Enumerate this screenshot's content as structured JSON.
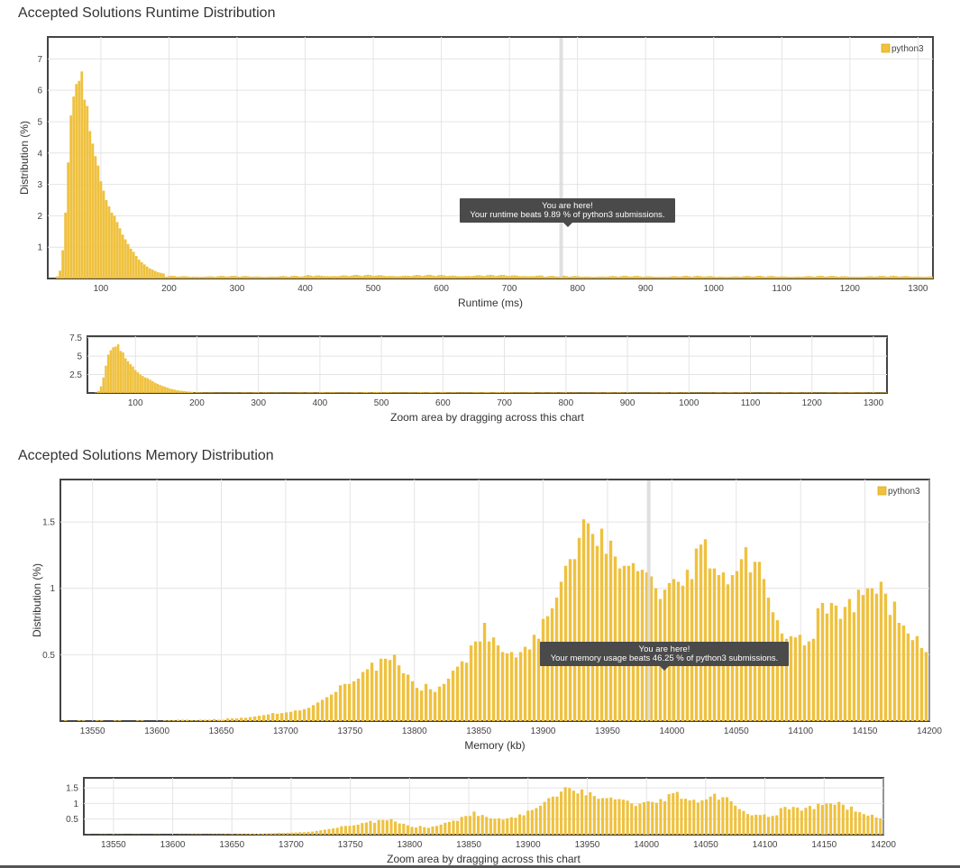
{
  "runtime_section": {
    "title": "Accepted Solutions Runtime Distribution"
  },
  "memory_section": {
    "title": "Accepted Solutions Memory Distribution"
  },
  "colors": {
    "bar": "#efc13e",
    "bar_edge": "#e0aa1a",
    "tooltip_bg": "#4a4a4a",
    "marker": "#d8d8d8"
  },
  "chart_data": [
    {
      "id": "runtime_main",
      "type": "bar",
      "ylabel": "Distribution (%)",
      "xlabel": "Runtime (ms)",
      "legend": "python3",
      "legend_position": "top-right",
      "xlim": [
        22,
        1322
      ],
      "ylim": [
        0,
        7.7
      ],
      "xticks": [
        100,
        200,
        300,
        400,
        500,
        600,
        700,
        800,
        900,
        1000,
        1100,
        1200,
        1300
      ],
      "yticks": [
        1,
        2,
        3,
        4,
        5,
        6,
        7
      ],
      "grid": true,
      "marker_x": 776,
      "tooltip": {
        "line1": "You are here!",
        "line2": "Your runtime beats 9.89 % of python3 submissions."
      },
      "bins": {
        "start": 36,
        "step": 4,
        "peak": [
          0.07,
          0.25,
          0.9,
          2.1,
          3.7,
          5.2,
          5.8,
          6.2,
          6.3,
          6.6,
          5.7,
          5.5,
          4.7,
          4.3,
          3.9,
          3.6,
          3.1,
          2.8,
          2.5,
          2.3,
          2.1,
          2.0,
          1.8,
          1.6,
          1.4,
          1.25,
          1.1,
          0.95,
          0.85,
          0.72,
          0.6,
          0.52,
          0.45,
          0.38,
          0.32,
          0.28,
          0.24,
          0.2,
          0.18,
          0.16
        ],
        "tail": 0.09,
        "end": 1320
      }
    },
    {
      "id": "runtime_zoom",
      "type": "bar",
      "xlabel": "Zoom area by dragging across this chart",
      "xlim": [
        22,
        1322
      ],
      "ylim": [
        0,
        7.7
      ],
      "xticks": [
        100,
        200,
        300,
        400,
        500,
        600,
        700,
        800,
        900,
        1000,
        1100,
        1200,
        1300
      ],
      "yticks": [
        2.5,
        5.0,
        7.5
      ],
      "grid": true
    },
    {
      "id": "memory_main",
      "type": "bar",
      "ylabel": "Distribution (%)",
      "xlabel": "Memory (kb)",
      "legend": "python3",
      "legend_position": "top-right",
      "xlim": [
        13525,
        14200
      ],
      "ylim": [
        0,
        1.82
      ],
      "xticks": [
        13550,
        13600,
        13650,
        13700,
        13750,
        13800,
        13850,
        13900,
        13950,
        14000,
        14050,
        14100,
        14150,
        14200
      ],
      "yticks": [
        0.5,
        1.0,
        1.5
      ],
      "grid": true,
      "marker_x": 13982,
      "tooltip": {
        "line1": "You are here!",
        "line2": "Your memory usage beats 46.25 % of python3 submissions."
      },
      "bins": {
        "start": 13529,
        "step": 3.5,
        "values": [
          0.005,
          0.0,
          0.0,
          0.005,
          0.005,
          0.0,
          0.0,
          0.005,
          0.005,
          0.0,
          0.0,
          0.005,
          0.005,
          0.0,
          0.0,
          0.0,
          0.005,
          0.005,
          0.0,
          0.0,
          0.0,
          0.0,
          0.005,
          0.005,
          0.005,
          0.01,
          0.01,
          0.01,
          0.005,
          0.005,
          0.01,
          0.01,
          0.01,
          0.015,
          0.01,
          0.01,
          0.02,
          0.02,
          0.02,
          0.025,
          0.025,
          0.03,
          0.035,
          0.04,
          0.045,
          0.05,
          0.06,
          0.055,
          0.06,
          0.065,
          0.07,
          0.08,
          0.08,
          0.09,
          0.1,
          0.12,
          0.14,
          0.16,
          0.18,
          0.2,
          0.22,
          0.27,
          0.28,
          0.28,
          0.3,
          0.32,
          0.37,
          0.39,
          0.44,
          0.38,
          0.47,
          0.47,
          0.46,
          0.5,
          0.42,
          0.36,
          0.35,
          0.3,
          0.25,
          0.23,
          0.28,
          0.24,
          0.22,
          0.26,
          0.28,
          0.32,
          0.38,
          0.41,
          0.45,
          0.44,
          0.57,
          0.6,
          0.6,
          0.74,
          0.6,
          0.63,
          0.57,
          0.52,
          0.51,
          0.52,
          0.48,
          0.52,
          0.56,
          0.54,
          0.65,
          0.62,
          0.77,
          0.79,
          0.85,
          0.93,
          1.05,
          1.17,
          1.22,
          1.22,
          1.38,
          1.52,
          1.49,
          1.41,
          1.32,
          1.45,
          1.26,
          1.36,
          1.24,
          1.15,
          1.17,
          1.17,
          1.19,
          1.13,
          1.14,
          1.12,
          1.09,
          1.0,
          0.92,
          0.99,
          1.04,
          1.07,
          1.05,
          1.02,
          1.14,
          1.07,
          1.3,
          1.33,
          1.37,
          1.15,
          1.15,
          1.1,
          1.12,
          1.03,
          1.1,
          1.13,
          1.22,
          1.31,
          1.12,
          1.2,
          1.2,
          1.07,
          0.93,
          0.82,
          0.76,
          0.66,
          0.62,
          0.64,
          0.63,
          0.65,
          0.57,
          0.6,
          0.62,
          0.85,
          0.89,
          0.81,
          0.89,
          0.87,
          0.77,
          0.86,
          0.92,
          0.82,
          0.99,
          0.95,
          1.0,
          1.0,
          0.96,
          1.05,
          0.96,
          0.8,
          0.9,
          0.74,
          0.72,
          0.66,
          0.61,
          0.64,
          0.55,
          0.52,
          0.49,
          0.42,
          0.44,
          0.39,
          0.43,
          0.4,
          0.37,
          0.42,
          0.35,
          0.32,
          0.37,
          0.36,
          0.34
        ]
      }
    },
    {
      "id": "memory_zoom",
      "type": "bar",
      "xlabel": "Zoom area by dragging across this chart",
      "xlim": [
        13525,
        14200
      ],
      "ylim": [
        0,
        1.82
      ],
      "xticks": [
        13550,
        13600,
        13650,
        13700,
        13750,
        13800,
        13850,
        13900,
        13950,
        14000,
        14050,
        14100,
        14150,
        14200
      ],
      "yticks": [
        0.5,
        1.0,
        1.5
      ],
      "grid": true
    }
  ]
}
